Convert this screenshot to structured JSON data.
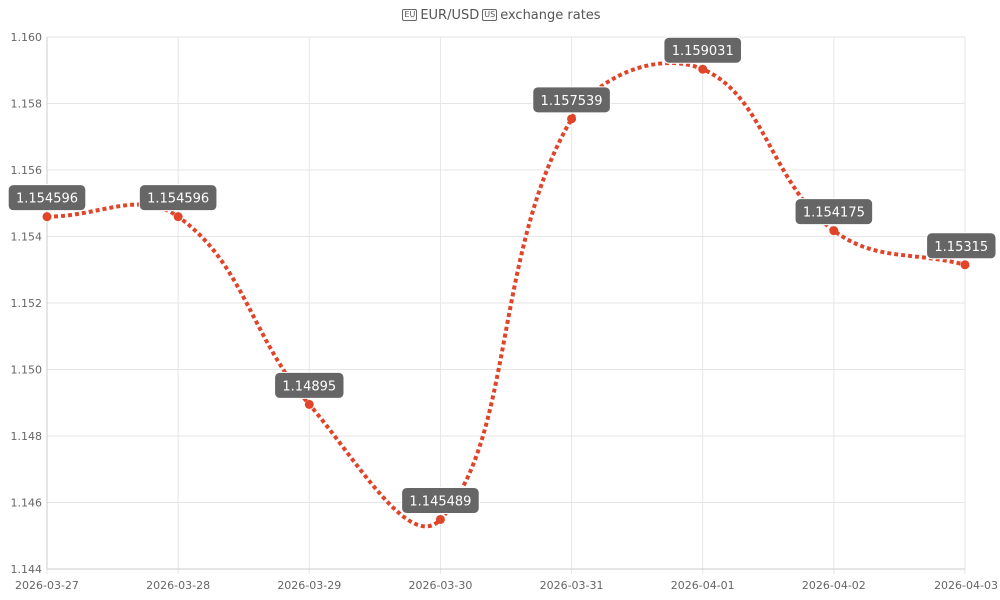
{
  "title": {
    "flag_left": "EU",
    "text": "EUR/USD",
    "flag_right": "US",
    "suffix": "exchange rates"
  },
  "colors": {
    "line": "#e0452a",
    "label_bg": "#666666",
    "label_text": "#ffffff",
    "grid": "#e6e6e6"
  },
  "chart_data": {
    "type": "line",
    "title": "🇪🇺 EUR/USD 🇺🇸 exchange rates",
    "x": [
      "2026-03-27",
      "2026-03-28",
      "2026-03-29",
      "2026-03-30",
      "2026-03-31",
      "2026-04-01",
      "2026-04-02",
      "2026-04-03"
    ],
    "values": [
      1.154596,
      1.154596,
      1.14895,
      1.145489,
      1.157539,
      1.159031,
      1.154175,
      1.15315
    ],
    "labels": [
      "1.154596",
      "1.154596",
      "1.14895",
      "1.145489",
      "1.157539",
      "1.159031",
      "1.154175",
      "1.15315"
    ],
    "ylim": [
      1.144,
      1.16
    ],
    "yticks": [
      "1.144",
      "1.146",
      "1.148",
      "1.150",
      "1.152",
      "1.154",
      "1.156",
      "1.158",
      "1.160"
    ],
    "line_style": "dotted",
    "smooth": true,
    "grid": true,
    "legend": "none"
  }
}
